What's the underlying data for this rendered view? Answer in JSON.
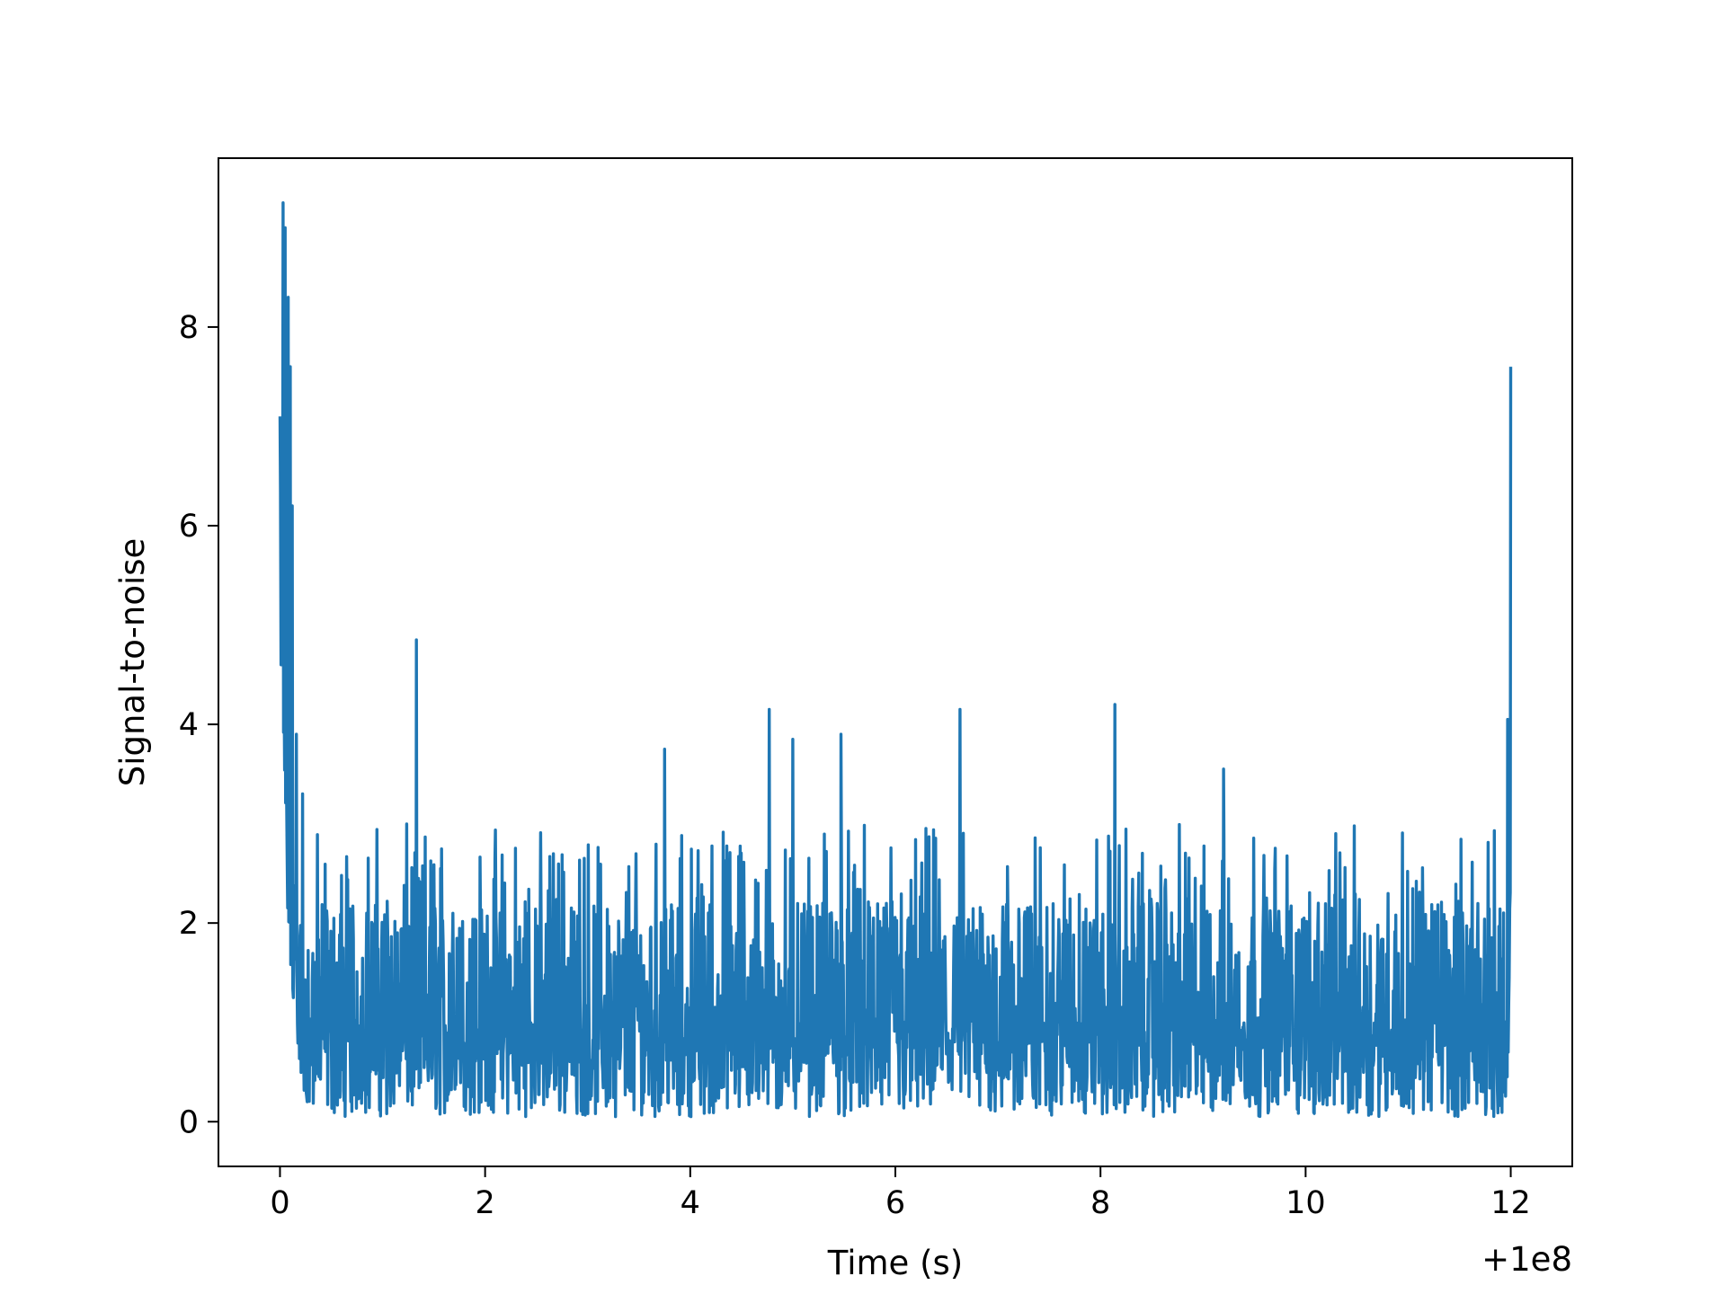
{
  "chart_data": {
    "type": "line",
    "title": "",
    "xlabel": "Time (s)",
    "ylabel": "Signal-to-noise",
    "x_offset_label": "+1e8",
    "x_offset": 100000000,
    "xlim": [
      -0.6,
      12.6
    ],
    "ylim": [
      -0.45,
      9.7
    ],
    "xticks": [
      0,
      2,
      4,
      6,
      8,
      10,
      12
    ],
    "xtick_labels": [
      "0",
      "2",
      "4",
      "6",
      "8",
      "10",
      "12"
    ],
    "yticks": [
      0,
      2,
      4,
      6,
      8
    ],
    "ytick_labels": [
      "0",
      "2",
      "4",
      "6",
      "8"
    ],
    "grid": false,
    "legend": "none",
    "series": [
      {
        "color": "#1f77b4",
        "x_range": [
          0,
          12
        ],
        "num_points": 2400,
        "notable_points": [
          {
            "x": 0.0,
            "y": 7.1
          },
          {
            "x": 0.01,
            "y": 4.6
          },
          {
            "x": 0.03,
            "y": 9.25
          },
          {
            "x": 0.05,
            "y": 9.0
          },
          {
            "x": 0.08,
            "y": 8.3
          },
          {
            "x": 0.1,
            "y": 7.6
          },
          {
            "x": 0.12,
            "y": 6.2
          },
          {
            "x": 0.16,
            "y": 3.9
          },
          {
            "x": 0.22,
            "y": 3.3
          },
          {
            "x": 0.3,
            "y": 0.9
          },
          {
            "x": 1.33,
            "y": 4.85
          },
          {
            "x": 3.75,
            "y": 3.75
          },
          {
            "x": 4.77,
            "y": 4.15
          },
          {
            "x": 5.0,
            "y": 3.85
          },
          {
            "x": 5.47,
            "y": 3.9
          },
          {
            "x": 6.63,
            "y": 4.15
          },
          {
            "x": 8.14,
            "y": 4.2
          },
          {
            "x": 9.2,
            "y": 3.55
          },
          {
            "x": 11.97,
            "y": 4.05
          },
          {
            "x": 12.0,
            "y": 7.6
          }
        ],
        "noise_floor_mean": 1.05,
        "noise_floor_range": [
          0.05,
          3.0
        ]
      }
    ]
  }
}
